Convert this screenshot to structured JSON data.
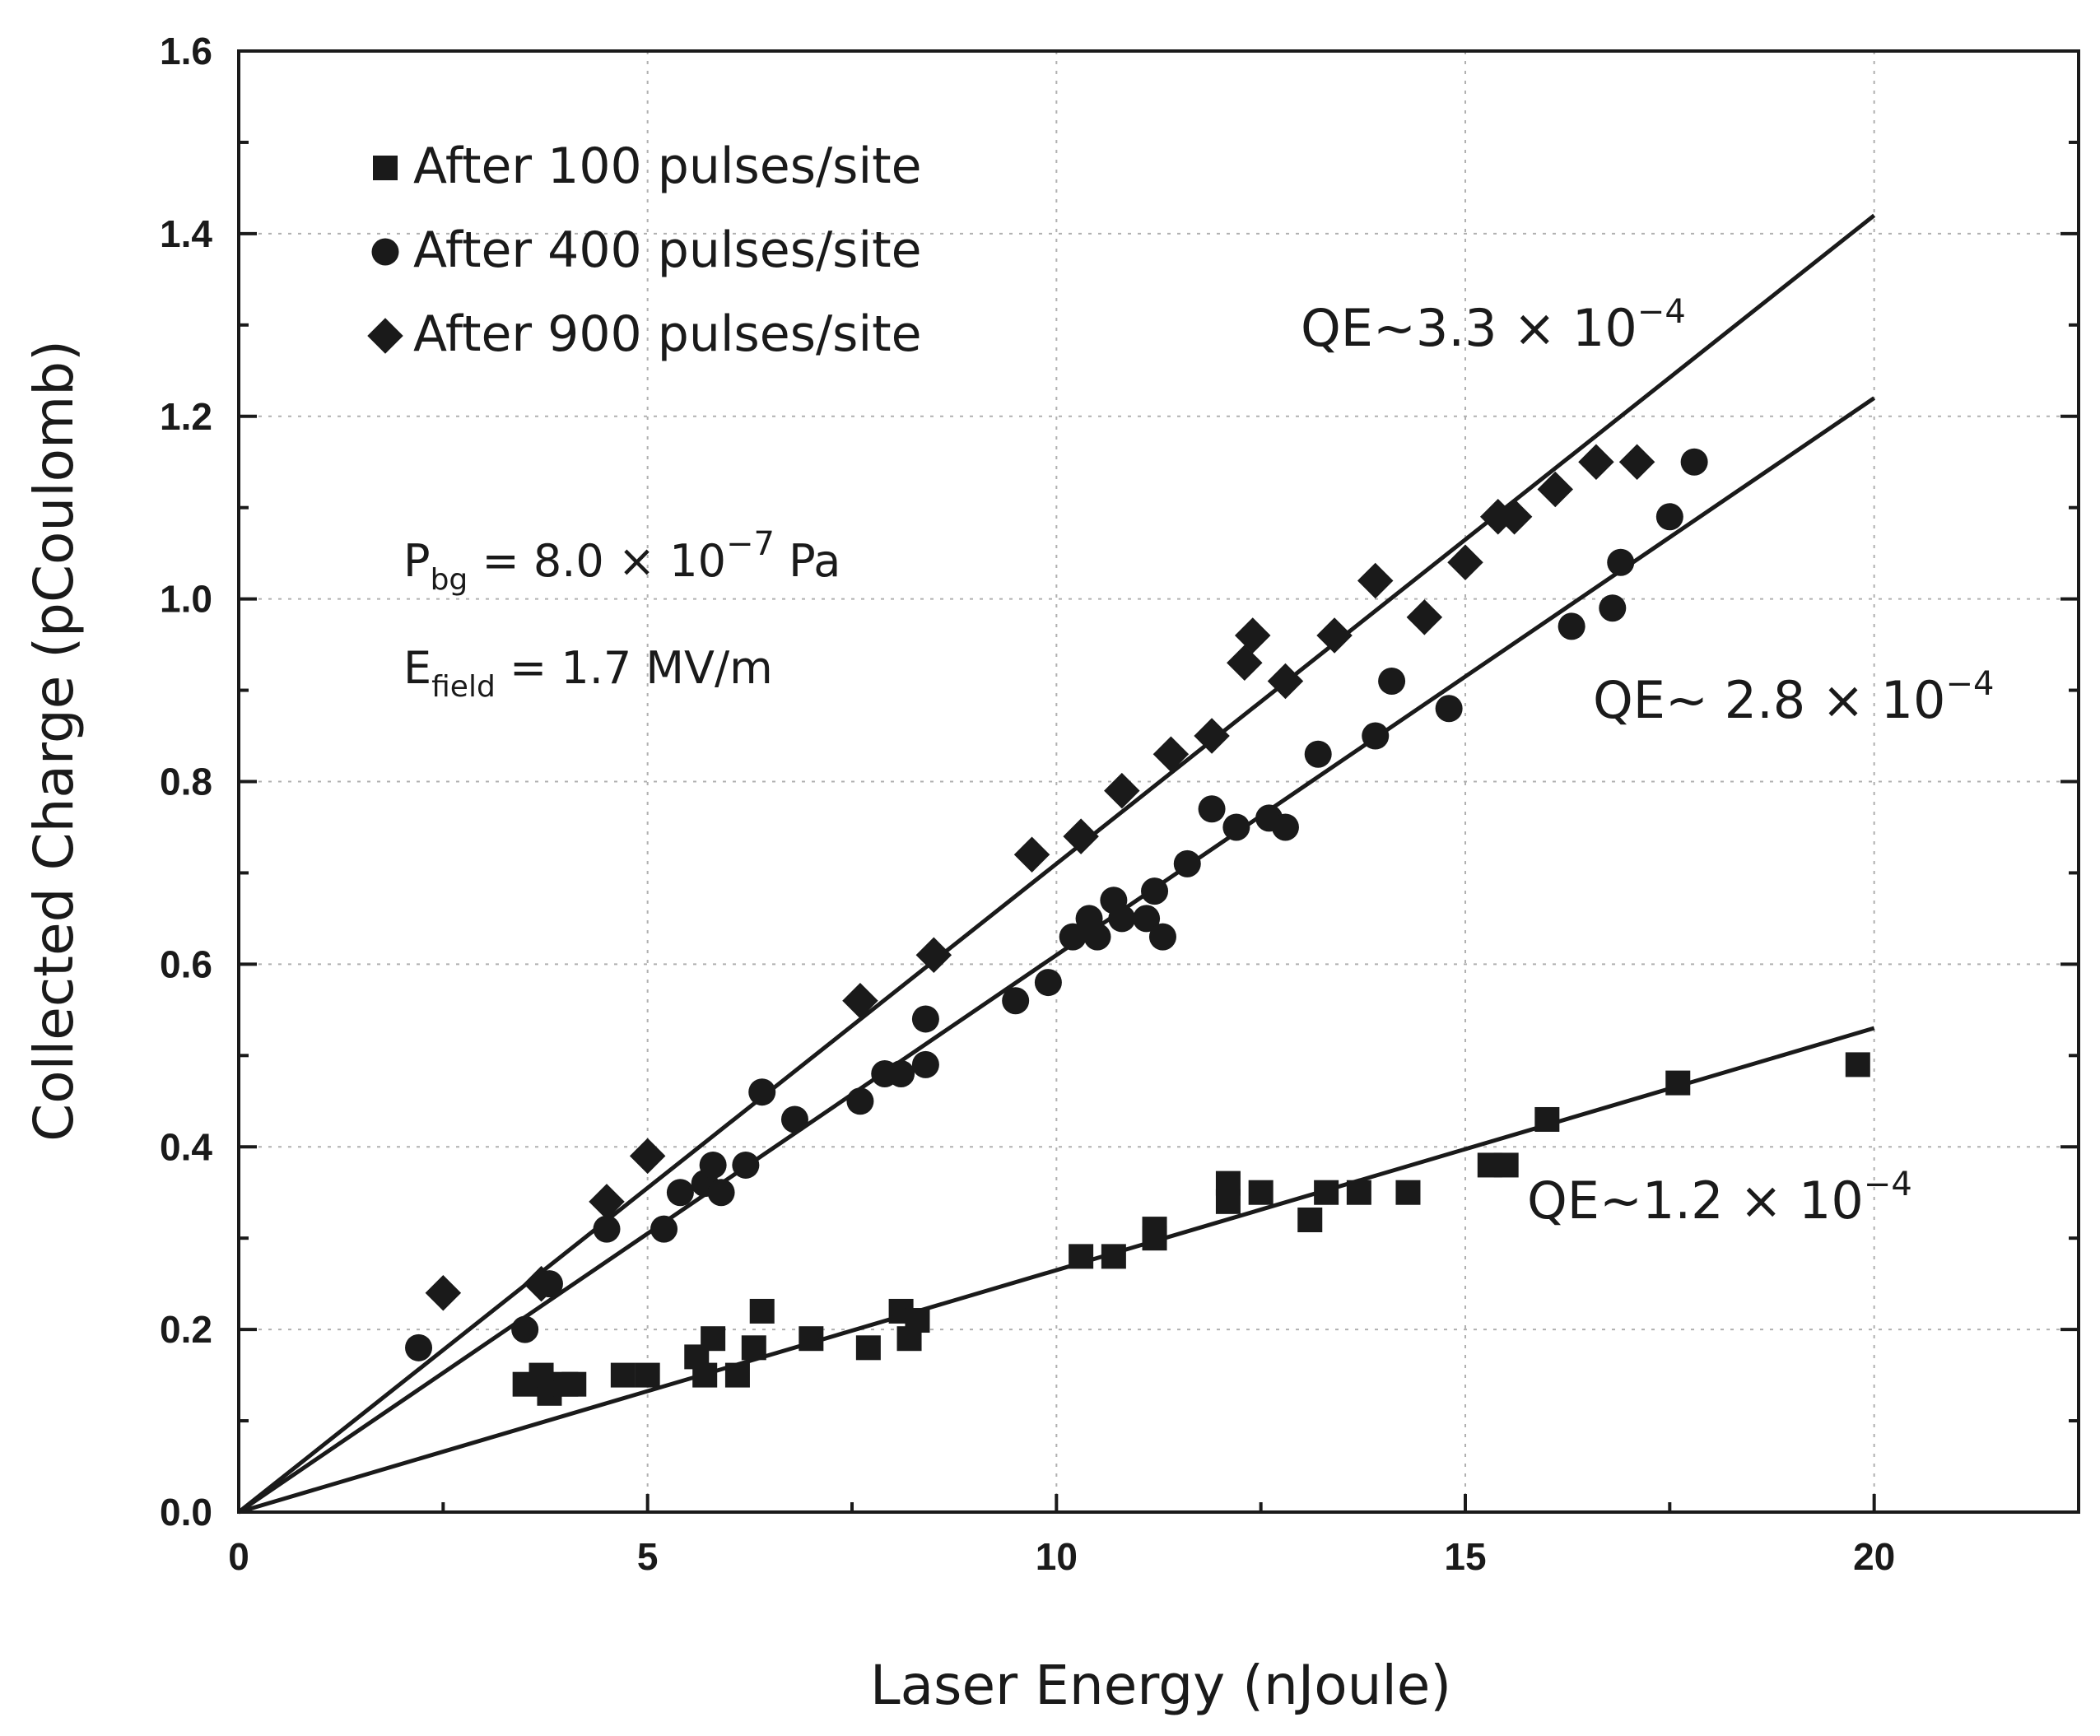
{
  "chart_data": {
    "type": "scatter",
    "title": "",
    "xlabel": "Laser Energy (nJoule)",
    "ylabel": "Collected Charge (pCoulomb)",
    "xlim": [
      0,
      22.5
    ],
    "ylim": [
      0,
      1.6
    ],
    "x_ticks": [
      "0",
      "5",
      "10",
      "15",
      "20"
    ],
    "y_ticks": [
      "0.0",
      "0.2",
      "0.4",
      "0.6",
      "0.8",
      "1.0",
      "1.2",
      "1.4",
      "1.6"
    ],
    "grid": true,
    "legend_position": "top-left",
    "series": [
      {
        "name": "After 100 pulses/site",
        "marker": "square",
        "points": [
          [
            3.5,
            0.14
          ],
          [
            3.7,
            0.15
          ],
          [
            3.8,
            0.13
          ],
          [
            4.0,
            0.14
          ],
          [
            4.1,
            0.14
          ],
          [
            4.7,
            0.15
          ],
          [
            5.0,
            0.15
          ],
          [
            5.6,
            0.17
          ],
          [
            5.7,
            0.15
          ],
          [
            5.8,
            0.19
          ],
          [
            6.1,
            0.15
          ],
          [
            6.3,
            0.18
          ],
          [
            6.4,
            0.22
          ],
          [
            7.0,
            0.19
          ],
          [
            7.7,
            0.18
          ],
          [
            8.1,
            0.22
          ],
          [
            8.2,
            0.19
          ],
          [
            8.3,
            0.21
          ],
          [
            10.3,
            0.28
          ],
          [
            10.7,
            0.28
          ],
          [
            11.2,
            0.31
          ],
          [
            11.2,
            0.3
          ],
          [
            12.1,
            0.36
          ],
          [
            12.1,
            0.34
          ],
          [
            12.5,
            0.35
          ],
          [
            13.1,
            0.32
          ],
          [
            13.3,
            0.35
          ],
          [
            13.7,
            0.35
          ],
          [
            14.3,
            0.35
          ],
          [
            15.3,
            0.38
          ],
          [
            15.5,
            0.38
          ],
          [
            16.0,
            0.43
          ],
          [
            17.6,
            0.47
          ],
          [
            19.8,
            0.49
          ]
        ],
        "fit": {
          "x": [
            0,
            20
          ],
          "y": [
            0,
            0.53
          ]
        },
        "annotation": {
          "base": "QE~1.2 × 10",
          "exp": "−4"
        }
      },
      {
        "name": "After 400 pulses/site",
        "marker": "circle",
        "points": [
          [
            2.2,
            0.18
          ],
          [
            3.5,
            0.2
          ],
          [
            3.8,
            0.25
          ],
          [
            4.5,
            0.31
          ],
          [
            5.2,
            0.31
          ],
          [
            5.4,
            0.35
          ],
          [
            5.7,
            0.36
          ],
          [
            5.8,
            0.38
          ],
          [
            5.9,
            0.35
          ],
          [
            6.2,
            0.38
          ],
          [
            6.4,
            0.46
          ],
          [
            6.8,
            0.43
          ],
          [
            7.6,
            0.45
          ],
          [
            7.9,
            0.48
          ],
          [
            8.1,
            0.48
          ],
          [
            8.4,
            0.54
          ],
          [
            8.4,
            0.49
          ],
          [
            9.5,
            0.56
          ],
          [
            9.9,
            0.58
          ],
          [
            10.2,
            0.63
          ],
          [
            10.4,
            0.65
          ],
          [
            10.5,
            0.63
          ],
          [
            10.7,
            0.67
          ],
          [
            10.8,
            0.65
          ],
          [
            11.1,
            0.65
          ],
          [
            11.2,
            0.68
          ],
          [
            11.3,
            0.63
          ],
          [
            11.6,
            0.71
          ],
          [
            11.9,
            0.77
          ],
          [
            12.2,
            0.75
          ],
          [
            12.6,
            0.76
          ],
          [
            12.8,
            0.75
          ],
          [
            13.2,
            0.83
          ],
          [
            13.9,
            0.85
          ],
          [
            14.1,
            0.91
          ],
          [
            14.8,
            0.88
          ],
          [
            16.3,
            0.97
          ],
          [
            16.8,
            0.99
          ],
          [
            16.9,
            1.04
          ],
          [
            17.5,
            1.09
          ],
          [
            17.8,
            1.15
          ]
        ],
        "fit": {
          "x": [
            0,
            20
          ],
          "y": [
            0,
            1.22
          ]
        },
        "annotation": {
          "base": "QE~ 2.8 × 10",
          "exp": "−4"
        }
      },
      {
        "name": "After 900 pulses/site",
        "marker": "diamond",
        "points": [
          [
            2.5,
            0.24
          ],
          [
            3.7,
            0.25
          ],
          [
            4.5,
            0.34
          ],
          [
            5.0,
            0.39
          ],
          [
            7.6,
            0.56
          ],
          [
            8.5,
            0.61
          ],
          [
            9.7,
            0.72
          ],
          [
            10.3,
            0.74
          ],
          [
            10.8,
            0.79
          ],
          [
            11.4,
            0.83
          ],
          [
            11.9,
            0.85
          ],
          [
            12.3,
            0.93
          ],
          [
            12.4,
            0.96
          ],
          [
            12.8,
            0.91
          ],
          [
            13.4,
            0.96
          ],
          [
            13.9,
            1.02
          ],
          [
            14.5,
            0.98
          ],
          [
            15.0,
            1.04
          ],
          [
            15.4,
            1.09
          ],
          [
            15.6,
            1.09
          ],
          [
            16.1,
            1.12
          ],
          [
            16.6,
            1.15
          ],
          [
            17.1,
            1.15
          ]
        ],
        "fit": {
          "x": [
            0,
            20
          ],
          "y": [
            0,
            1.42
          ]
        },
        "annotation": {
          "base": "QE~3.3 × 10",
          "exp": "−4"
        }
      }
    ],
    "parameters": [
      {
        "symbol": "P",
        "subscript": "bg",
        "value": " = 8.0 × 10",
        "exp": "−7",
        "unit": " Pa"
      },
      {
        "symbol": "E",
        "subscript": "field",
        "value": " = 1.7 MV/m",
        "exp": "",
        "unit": ""
      }
    ]
  }
}
